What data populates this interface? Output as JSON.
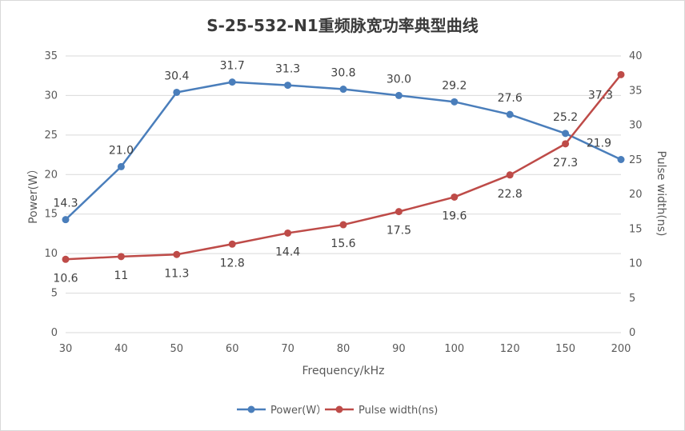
{
  "chart_data": {
    "type": "line",
    "title": "S-25-532-N1重频脉宽功率典型曲线",
    "xlabel": "Frequency/kHz",
    "ylabel": "Power(W）",
    "y2label": "Pulse width(ns)",
    "categories": [
      "30",
      "40",
      "50",
      "60",
      "70",
      "80",
      "90",
      "100",
      "120",
      "150",
      "200"
    ],
    "ylim": [
      0,
      35
    ],
    "yticks": [
      "0",
      "5",
      "10",
      "15",
      "20",
      "25",
      "30",
      "35"
    ],
    "y2lim": [
      0,
      40
    ],
    "y2ticks": [
      "0",
      "5",
      "10",
      "15",
      "20",
      "25",
      "30",
      "35",
      "40"
    ],
    "grid": "horizontal",
    "legend_position": "bottom",
    "series": [
      {
        "name": "Power(W）",
        "axis": "left",
        "color": "#4a7ebb",
        "values": [
          14.3,
          21.0,
          30.4,
          31.7,
          31.3,
          30.8,
          30.0,
          29.2,
          27.6,
          25.2,
          21.9
        ],
        "labels": [
          "14.3",
          "21.0",
          "30.4",
          "31.7",
          "31.3",
          "30.8",
          "30.0",
          "29.2",
          "27.6",
          "25.2",
          "21.9"
        ]
      },
      {
        "name": "Pulse width(ns)",
        "axis": "right",
        "color": "#be4b48",
        "values": [
          10.6,
          11,
          11.3,
          12.8,
          14.4,
          15.6,
          17.5,
          19.6,
          22.8,
          27.3,
          37.3
        ],
        "labels": [
          "10.6",
          "11",
          "11.3",
          "12.8",
          "14.4",
          "15.6",
          "17.5",
          "19.6",
          "22.8",
          "27.3",
          "37.3"
        ]
      }
    ]
  }
}
